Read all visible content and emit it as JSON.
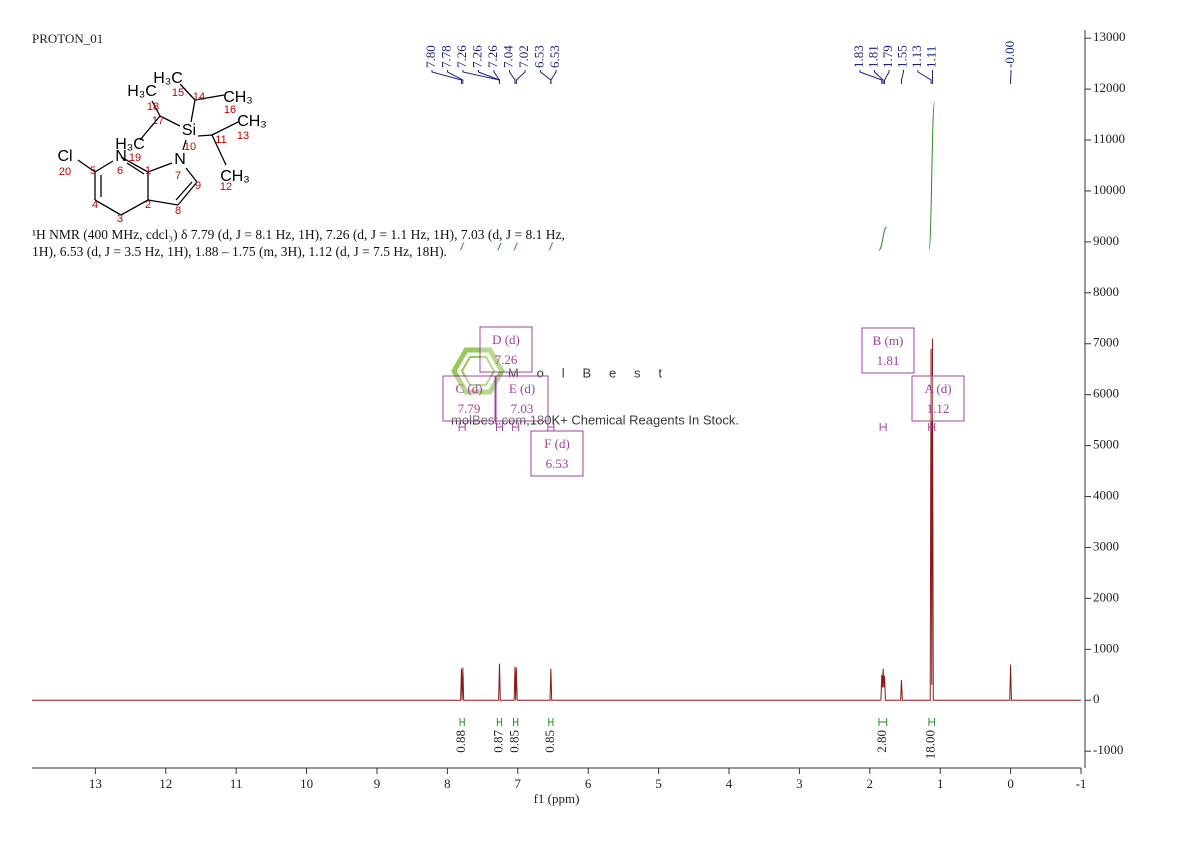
{
  "title": "PROTON_01",
  "description": "¹H NMR (400 MHz, cdcl₃) δ 7.79 (d, J = 8.1 Hz, 1H), 7.26 (d, J = 1.1 Hz, 1H), 7.03 (d, J = 8.1 Hz, 1H), 6.53 (d, J = 3.5 Hz, 1H), 1.88 – 1.75 (m, 3H), 1.12 (d, J = 7.5 Hz, 18H).",
  "watermark": {
    "brand": "MolBest",
    "tagline": "molBest.com,180K+ Chemical Reagents In Stock."
  },
  "structure": {
    "atoms": [
      "H₃C",
      "CH₃",
      "H₃C",
      "CH₃",
      "Si",
      "H₃C",
      "N",
      "Cl",
      "N",
      "CH₃"
    ],
    "locants": [
      "15",
      "14",
      "18",
      "16",
      "17",
      "13",
      "10",
      "11",
      "19",
      "6",
      "1",
      "5",
      "20",
      "7",
      "9",
      "12",
      "4",
      "2",
      "8",
      "3"
    ]
  },
  "chart_data": {
    "type": "nmr",
    "xlabel": "f1 (ppm)",
    "xlim": [
      13.9,
      -1
    ],
    "xticks": [
      13,
      12,
      11,
      10,
      9,
      8,
      7,
      6,
      5,
      4,
      3,
      2,
      1,
      0,
      -1
    ],
    "ylim": [
      -1330,
      13160
    ],
    "yticks": [
      -1000,
      0,
      1000,
      2000,
      3000,
      4000,
      5000,
      6000,
      7000,
      8000,
      9000,
      10000,
      11000,
      12000,
      13000
    ],
    "spectrum": {
      "color": "#8b1a1a",
      "x": [
        13.9,
        7.812,
        7.8,
        7.79,
        7.78,
        7.768,
        7.272,
        7.26,
        7.248,
        7.052,
        7.04,
        7.03,
        7.02,
        7.008,
        6.542,
        6.53,
        6.518,
        1.842,
        1.83,
        1.82,
        1.81,
        1.8,
        1.79,
        1.778,
        1.562,
        1.55,
        1.538,
        1.142,
        1.13,
        1.12,
        1.11,
        1.098,
        0.012,
        0,
        -0.012,
        -1
      ],
      "values": [
        0,
        0,
        620,
        0,
        640,
        0,
        0,
        720,
        0,
        0,
        660,
        0,
        640,
        0,
        0,
        620,
        0,
        0,
        500,
        250,
        620,
        250,
        480,
        0,
        0,
        400,
        0,
        0,
        6900,
        300,
        7100,
        0,
        0,
        700,
        0,
        0
      ]
    },
    "peaks": [
      {
        "value": 7.8,
        "label": "7.80"
      },
      7.78,
      7.26,
      7.26,
      7.26,
      7.04,
      7.02,
      6.53,
      6.53,
      1.83,
      1.81,
      1.79,
      1.55,
      1.13,
      1.11,
      {
        "value": 0,
        "label": "-0.00"
      }
    ],
    "peak_color": "#1a237e",
    "integrals": {
      "color": "#2e8b2e",
      "ranges": [
        [
          7.82,
          7.76
        ],
        [
          7.29,
          7.23
        ],
        [
          7.06,
          7.0
        ],
        [
          6.56,
          6.5
        ],
        [
          1.87,
          1.76
        ],
        [
          1.16,
          1.08
        ]
      ],
      "values": [
        0.88,
        0.87,
        0.85,
        0.85,
        2.8,
        18
      ],
      "value_labels": [
        "0.88",
        "0.87",
        "0.85",
        "0.85",
        "2.80",
        "18.00"
      ]
    },
    "multiplets": {
      "color": "#a040a0",
      "items": [
        {
          "label": "A (d)",
          "shift": 1.12
        },
        {
          "label": "B (m)",
          "shift": 1.81
        },
        {
          "label": "C (d)",
          "shift": 7.79
        },
        {
          "label": "D (d)",
          "shift": 7.26
        },
        {
          "label": "E (d)",
          "shift": 7.03
        },
        {
          "label": "F (d)",
          "shift": 6.53
        }
      ]
    }
  }
}
